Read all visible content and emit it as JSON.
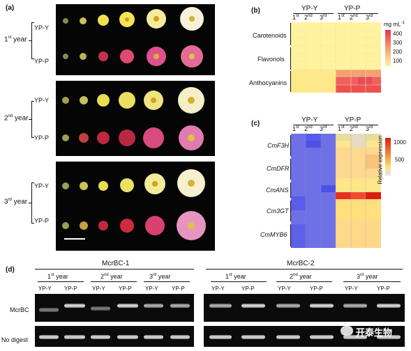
{
  "panel_a": {
    "letter": "(a)",
    "row_labels": {
      "yp_y": "YP-Y",
      "yp_p": "YP-P"
    },
    "years": [
      {
        "num": "1",
        "sup": "st",
        "word": "year"
      },
      {
        "num": "2",
        "sup": "nd",
        "word": "year"
      },
      {
        "num": "3",
        "sup": "rd",
        "word": "year"
      }
    ]
  },
  "panel_b": {
    "letter": "(b)",
    "groups": [
      "YP-Y",
      "YP-P"
    ],
    "years": [
      {
        "num": "1",
        "sup": "st"
      },
      {
        "num": "2",
        "sup": "nd"
      },
      {
        "num": "3",
        "sup": "rd"
      }
    ],
    "rows": [
      "Carotenoids",
      "Flavonols",
      "Anthocyanins"
    ],
    "legend_unit": "mg mL",
    "legend_unit_sup": "-1",
    "legend_ticks": [
      "400",
      "300",
      "200",
      "100"
    ],
    "colors": {
      "low": "#fff3a0",
      "high": "#e8314a"
    }
  },
  "panel_c": {
    "letter": "(c)",
    "groups": [
      "YP-Y",
      "YP-P"
    ],
    "years": [
      {
        "num": "1",
        "sup": "st"
      },
      {
        "num": "2",
        "sup": "nd"
      },
      {
        "num": "3",
        "sup": "rd"
      }
    ],
    "genes": [
      "CmF3H",
      "CmDFR",
      "CmANS",
      "Cm3GT",
      "CmMYB6"
    ],
    "legend_label": "Relative expression",
    "legend_ticks": [
      "1000",
      "500"
    ],
    "colors": {
      "low": "#6b6de8",
      "mid": "#ffe680",
      "high": "#d81e10"
    }
  },
  "panel_d": {
    "letter": "(d)",
    "left_title": "McrBC-1",
    "right_title": "McrBC-2",
    "years": [
      {
        "num": "1",
        "sup": "st",
        "word": "year"
      },
      {
        "num": "2",
        "sup": "nd",
        "word": "year"
      },
      {
        "num": "3",
        "sup": "rd",
        "word": "year"
      }
    ],
    "lanes": [
      "YP-Y",
      "YP-P",
      "YP-Y",
      "YP-P",
      "YP-Y",
      "YP-P"
    ],
    "row_labels": [
      "McrBC",
      "No digest"
    ]
  },
  "watermark": "开泰生物"
}
